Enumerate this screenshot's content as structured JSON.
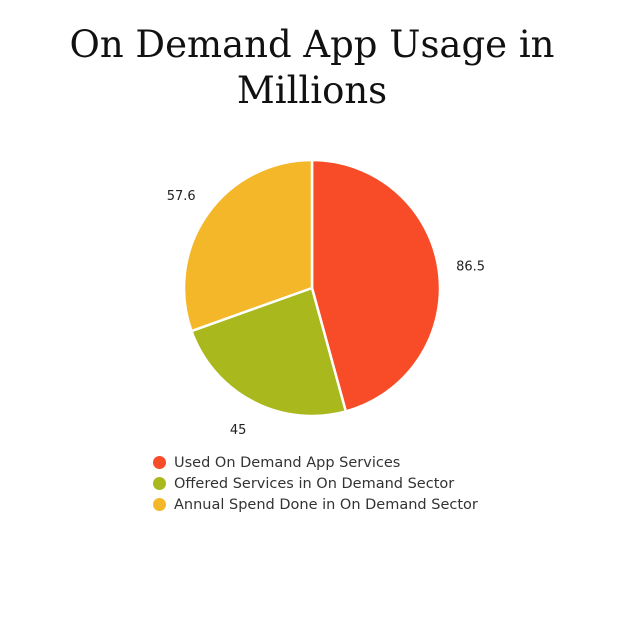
{
  "chart_data": {
    "type": "pie",
    "title": "On Demand App Usage in Millions",
    "categories": [
      "Used On Demand App Services",
      "Offered Services in On Demand Sector",
      "Annual Spend Done in On Demand Sector"
    ],
    "values": [
      86.5,
      45,
      57.6
    ],
    "data_labels": [
      "86.5",
      "45",
      "57.6"
    ],
    "colors": [
      "#F84C28",
      "#A9B81C",
      "#F5B72A"
    ],
    "legend_placement": "bottom",
    "start_angle": "top, clockwise"
  }
}
